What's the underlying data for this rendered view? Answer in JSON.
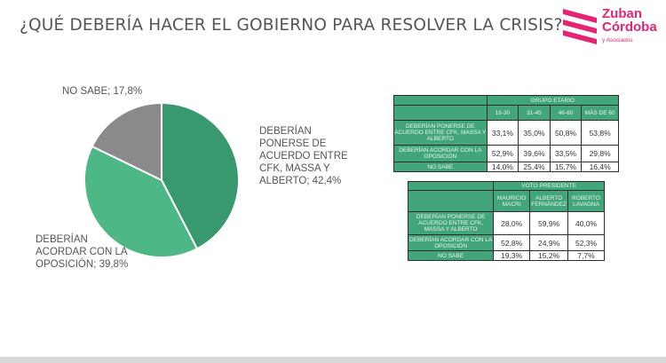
{
  "title": "¿QUÉ DEBERÍA HACER EL GOBIERNO PARA RESOLVER LA CRISIS?",
  "logo": {
    "line1": "Zuban",
    "line2": "Córdoba",
    "sub": "y Asociados"
  },
  "colors": {
    "green": "#43a67a",
    "green_dark": "#37996d",
    "gray": "#8a8a8a",
    "pink": "#e52574"
  },
  "chart_data": {
    "type": "pie",
    "slices": [
      {
        "label": "DEBERÍAN PONERSE DE ACUERDO ENTRE CFK, MASSA Y ALBERTO; 42,4%",
        "value": 42.4,
        "color": "#37996d"
      },
      {
        "label": "DEBERÍAN ACORDAR CON LA OPOSICIÓN; 39,8%",
        "value": 39.8,
        "color": "#4db885"
      },
      {
        "label": "NO SABE; 17,8%",
        "value": 17.8,
        "color": "#8a8a8a"
      }
    ],
    "labels": {
      "no_sabe": "NO SABE; 17,8%",
      "ponerse": "DEBERÍAN PONERSE DE ACUERDO ENTRE CFK, MASSA Y ALBERTO; 42,4%",
      "acordar": "DEBERÍAN ACORDAR CON LA OPOSICIÓN; 39,8%"
    }
  },
  "table1": {
    "group": "GRUPO ETARIO",
    "cols": [
      "16-30",
      "31-45",
      "46-60",
      "MÁS DE 60"
    ],
    "rows": [
      {
        "label": "DEBERÍAN PONERSE DE ACUERDO ENTRE CFK, MASSA Y ALBERTO",
        "values": [
          "33,1%",
          "35,0%",
          "50,8%",
          "53,8%"
        ]
      },
      {
        "label": "DEBERÍAN ACORDAR CON LA OPOSICIÓN",
        "values": [
          "52,9%",
          "39,6%",
          "33,5%",
          "29,8%"
        ]
      },
      {
        "label": "NO SABE",
        "values": [
          "14,0%",
          "25,4%",
          "15,7%",
          "16,4%"
        ]
      }
    ]
  },
  "table2": {
    "group": "VOTO PRESIDENTE",
    "cols": [
      "MAURICIO MACRI",
      "ALBERTO FERNÁNDEZ",
      "ROBERTO LAVAGNA"
    ],
    "rows": [
      {
        "label": "DEBERÍAN PONERSE DE ACUERDO ENTRE CFK, MASSA Y ALBERTO",
        "values": [
          "28,0%",
          "59,9%",
          "40,0%"
        ]
      },
      {
        "label": "DEBERÍAN ACORDAR CON LA OPOSICIÓN",
        "values": [
          "52,8%",
          "24,9%",
          "52,3%"
        ]
      },
      {
        "label": "NO SABE",
        "values": [
          "19,3%",
          "15,2%",
          "7,7%"
        ]
      }
    ]
  }
}
